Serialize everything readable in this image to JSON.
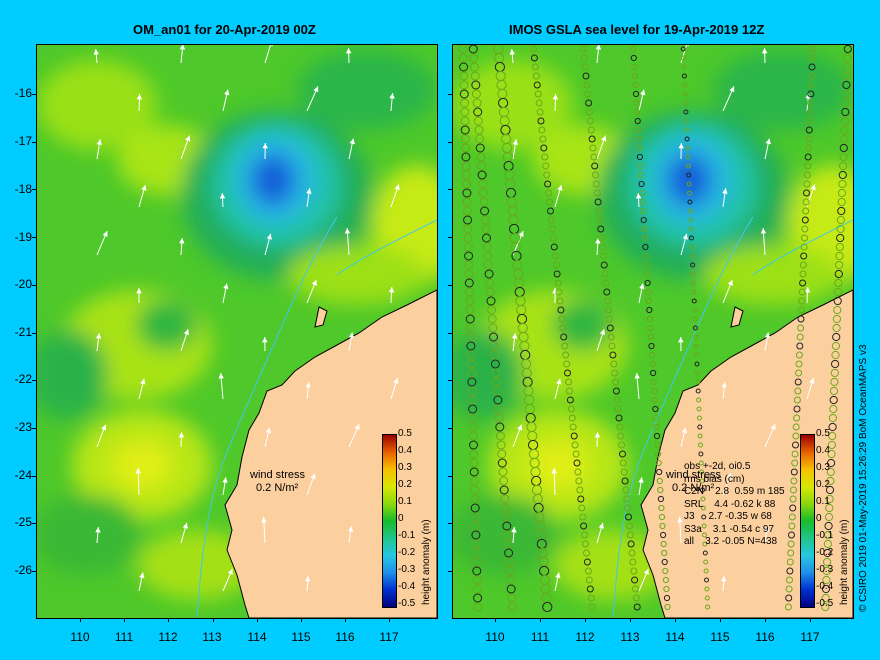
{
  "left_panel": {
    "title": "OM_an01 for 20-Apr-2019 00Z"
  },
  "right_panel": {
    "title": "IMOS GSLA sea level  for 19-Apr-2019 12Z"
  },
  "axes": {
    "lat_labels": [
      "-16",
      "-17",
      "-18",
      "-19",
      "-20",
      "-21",
      "-22",
      "-23",
      "-24",
      "-25",
      "-26"
    ],
    "lon_labels": [
      "110",
      "111",
      "112",
      "113",
      "114",
      "115",
      "116",
      "117"
    ]
  },
  "colorbar": {
    "title": "height anomaly (m)",
    "ticks": [
      "0.5",
      "0.4",
      "0.3",
      "0.2",
      "0.1",
      "0",
      "-0.1",
      "-0.2",
      "-0.3",
      "-0.4",
      "-0.5"
    ]
  },
  "wind_legend": {
    "line1": "wind stress",
    "line2": "0.2 N/m²"
  },
  "obs_stats": {
    "header1": "obs +-2d, oi0.5",
    "header2": "rms bias (cm)",
    "rows": [
      "C2N    2.8  0.59 m 185",
      "SRL    4.4 -0.62 k 88",
      "J3     2.7 -0.35 w 68",
      "S3a    3.1 -0.54 c 97",
      "all    3.2 -0.05 N=438"
    ]
  },
  "credit": "© CSIRO 2019   01-May-2019 15:26:29 BoM OceanMAPS v3",
  "colors": {
    "background": "#00ccff",
    "land": "#fccf9f",
    "field_base": "#4ec82a",
    "eddy_low": "#1560d8",
    "high": "#d8ee10"
  }
}
